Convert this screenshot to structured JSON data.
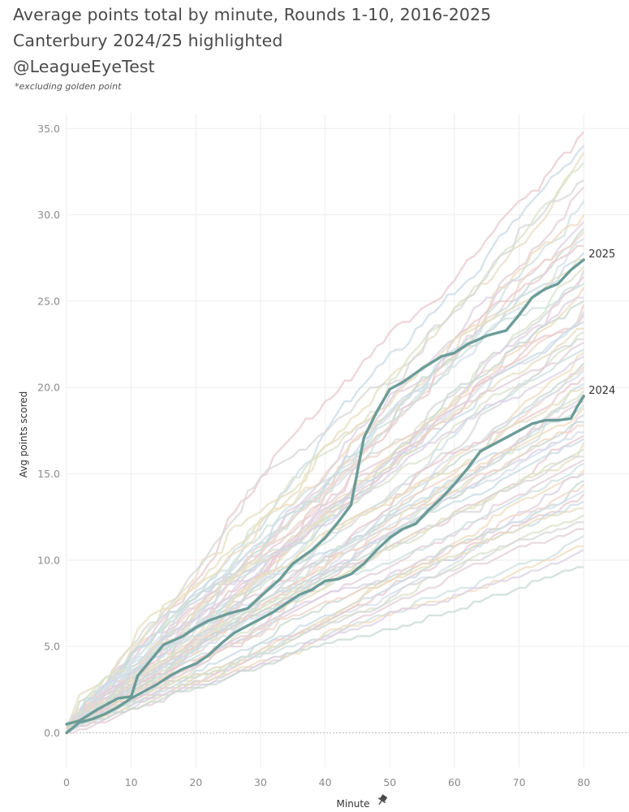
{
  "header": {
    "title_line1": "Average points total by minute, Rounds 1-10, 2016-2025",
    "title_line2": "Canterbury 2024/25 highlighted",
    "title_line3": "@LeagueEyeTest",
    "note": "*excluding golden point"
  },
  "colors": {
    "highlight": "#6b9c98",
    "background_palette": [
      "#e8c9cf",
      "#c9dbe4",
      "#e5dfc2",
      "#d9e3cc",
      "#d8d8d8",
      "#e3cfd8",
      "#cfe0df",
      "#efdcc0",
      "#dcd2e4",
      "#c8d9d2",
      "#efd5c9",
      "#d6dfe9"
    ]
  },
  "chart_data": {
    "type": "line",
    "title": "Average points total by minute, Rounds 1-10, 2016-2025",
    "xlabel": "Minute",
    "ylabel": "Avg points scored",
    "xlim": [
      0,
      87
    ],
    "ylim": [
      -2.0,
      36.8
    ],
    "x_ticks": [
      0,
      10,
      20,
      30,
      40,
      50,
      60,
      70,
      80
    ],
    "x_tick_labels": [
      "0",
      "10",
      "20",
      "30",
      "40",
      "50",
      "60",
      "70",
      "80"
    ],
    "y_ticks": [
      0,
      5,
      10,
      15,
      20,
      25,
      30,
      35
    ],
    "y_tick_labels": [
      "0.0",
      "5.0",
      "10.0",
      "15.0",
      "20.0",
      "25.0",
      "30.0",
      "35.0"
    ],
    "highlighted_series": [
      {
        "name": "2025",
        "label": "2025",
        "x": [
          0,
          2,
          5,
          8,
          10,
          11,
          13,
          15,
          18,
          20,
          22,
          25,
          28,
          30,
          33,
          35,
          38,
          40,
          42,
          44,
          46,
          48,
          50,
          52,
          55,
          58,
          60,
          62,
          65,
          68,
          70,
          72,
          74,
          76,
          78,
          80
        ],
        "y": [
          0.5,
          0.7,
          1.4,
          2.0,
          2.1,
          3.3,
          4.2,
          5.1,
          5.6,
          6.1,
          6.5,
          6.9,
          7.2,
          7.9,
          8.9,
          9.8,
          10.6,
          11.3,
          12.2,
          13.2,
          17.1,
          18.6,
          19.9,
          20.3,
          21.1,
          21.8,
          22.0,
          22.5,
          23.0,
          23.3,
          24.2,
          25.2,
          25.7,
          26.0,
          26.8,
          27.4
        ]
      },
      {
        "name": "2024",
        "label": "2024",
        "x": [
          0,
          2,
          4,
          6,
          8,
          10,
          12,
          14,
          16,
          18,
          20,
          22,
          24,
          26,
          28,
          30,
          32,
          34,
          36,
          38,
          40,
          42,
          44,
          46,
          48,
          50,
          52,
          54,
          56,
          58,
          60,
          62,
          64,
          66,
          68,
          70,
          72,
          74,
          76,
          78,
          79,
          80
        ],
        "y": [
          0.0,
          0.6,
          0.8,
          1.1,
          1.5,
          2.0,
          2.4,
          2.8,
          3.3,
          3.7,
          4.0,
          4.5,
          5.2,
          5.8,
          6.2,
          6.6,
          7.0,
          7.5,
          8.0,
          8.3,
          8.8,
          8.9,
          9.2,
          9.8,
          10.6,
          11.3,
          11.8,
          12.1,
          12.9,
          13.6,
          14.4,
          15.3,
          16.3,
          16.7,
          17.1,
          17.5,
          17.9,
          18.1,
          18.1,
          18.2,
          18.9,
          19.5
        ]
      }
    ],
    "background_series_finals": [
      34.8,
      34.0,
      33.5,
      33.0,
      32.0,
      31.5,
      30.8,
      30.0,
      29.6,
      29.2,
      28.9,
      28.6,
      28.2,
      27.8,
      27.5,
      27.1,
      26.7,
      26.3,
      26.0,
      25.7,
      25.3,
      25.0,
      24.7,
      24.4,
      24.1,
      23.8,
      23.5,
      23.2,
      22.9,
      22.6,
      22.3,
      22.0,
      21.7,
      21.4,
      21.1,
      20.9,
      20.6,
      20.3,
      20.0,
      19.8,
      19.5,
      19.2,
      18.9,
      18.7,
      18.4,
      18.1,
      17.8,
      17.5,
      17.2,
      17.0,
      16.7,
      16.4,
      16.1,
      15.8,
      15.5,
      15.2,
      14.9,
      14.6,
      14.3,
      14.0,
      13.7,
      13.4,
      13.0,
      12.6,
      12.2,
      11.8,
      11.3,
      10.8,
      10.5,
      9.6
    ]
  }
}
